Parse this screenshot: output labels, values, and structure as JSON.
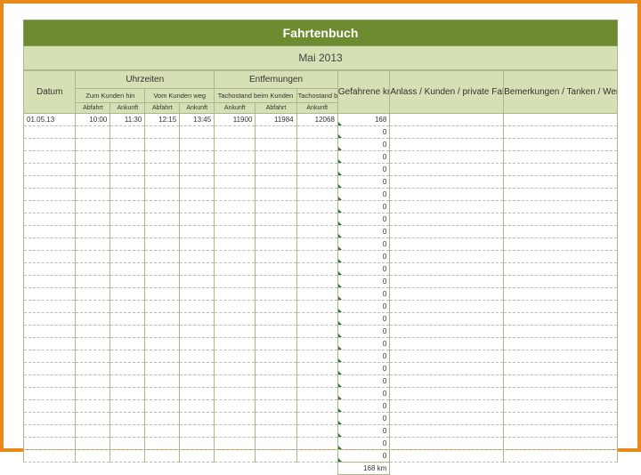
{
  "title": "Fahrtenbuch",
  "subtitle": "Mai 2013",
  "colors": {
    "frame": "#e88a1a",
    "header_bg": "#6e8c2f",
    "header_text": "#ffffff",
    "subheader_bg": "#d5e0b4",
    "border": "#aab88a",
    "tick": "#2a7a2a",
    "row_dash": "#bbbbbb"
  },
  "headers": {
    "datum": "Datum",
    "uhrzeiten": "Uhrzeiten",
    "entfernungen": "Entfernungen",
    "zum_kunden_hin": "Zum Kunden hin",
    "vom_kunden_weg": "Vom Kunden weg",
    "tacho_kunden": "Tachostand beim Kunden",
    "tacho_naechst": "Tachostand beim nächsten Ziel",
    "gefahrene_km": "Gefahrene km",
    "anlass": "Anlass / Kunden / private Fahrt",
    "bemerkungen": "Bemerkungen / Tanken / Werkstatt",
    "abfahrt": "Abfahrt",
    "ankunft": "Ankunft"
  },
  "rows": [
    {
      "datum": "01.05.13",
      "t1_ab": "10:00",
      "t1_an": "11:30",
      "t2_ab": "12:15",
      "t2_an": "13:45",
      "odo_kunde_an": "11900",
      "odo_kunde_ab": "11984",
      "odo_next_an": "12068",
      "km": "168",
      "anlass": "",
      "bemerk": ""
    }
  ],
  "empty_row_count": 27,
  "empty_km_value": "0",
  "total": {
    "km": "168",
    "unit": "km"
  }
}
